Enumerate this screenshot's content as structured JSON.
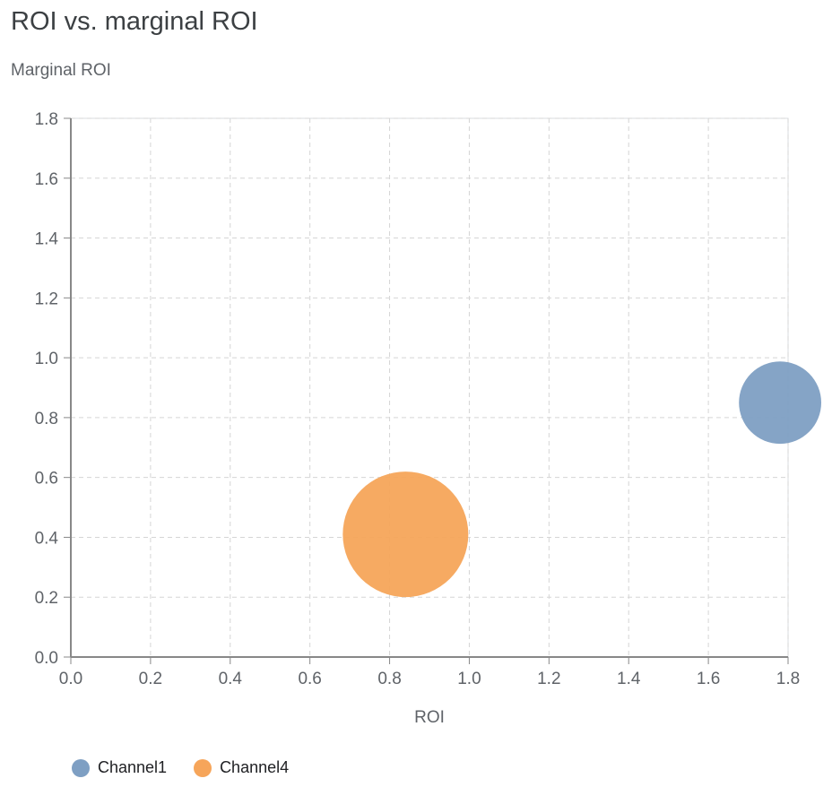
{
  "chart_data": {
    "type": "scatter",
    "title": "ROI vs. marginal ROI",
    "ylabel": "Marginal ROI",
    "xlabel": "ROI",
    "xlim": [
      0,
      1.8
    ],
    "ylim": [
      0,
      1.8
    ],
    "xticks": [
      "0.0",
      "0.2",
      "0.4",
      "0.6",
      "0.8",
      "1.0",
      "1.2",
      "1.4",
      "1.6",
      "1.8"
    ],
    "yticks": [
      "0.0",
      "0.2",
      "0.4",
      "0.6",
      "0.8",
      "1.0",
      "1.2",
      "1.4",
      "1.6",
      "1.8"
    ],
    "grid": true,
    "legend_position": "bottom-left",
    "series": [
      {
        "name": "Channel1",
        "x": 1.78,
        "y": 0.85,
        "relative_size": 0.43,
        "color": "#7e9fc3"
      },
      {
        "name": "Channel4",
        "x": 0.84,
        "y": 0.41,
        "relative_size": 1.0,
        "color": "#f6a55a"
      }
    ]
  }
}
